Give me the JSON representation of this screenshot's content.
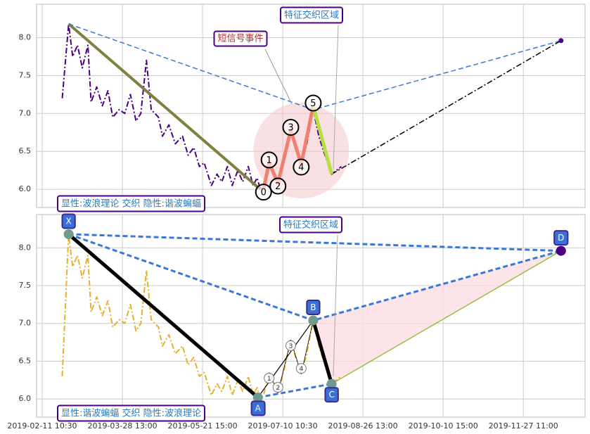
{
  "chart_data": [
    {
      "type": "line",
      "xlim": [
        -7,
        677
      ],
      "ylim": [
        5.76,
        8.44
      ],
      "grid": true,
      "yticks": [
        {
          "value": 6,
          "label": "6.0"
        },
        {
          "value": 6.5,
          "label": "6.5"
        },
        {
          "value": 7,
          "label": "7.0"
        },
        {
          "value": 7.5,
          "label": "7.5"
        },
        {
          "value": 8,
          "label": "8.0"
        }
      ],
      "series": [
        {
          "color": "#4b0082",
          "dash": "dashdot",
          "width": 2,
          "x": [
            25,
            33,
            38,
            44,
            50,
            57,
            61,
            68,
            75,
            82,
            88,
            96,
            103,
            110,
            117,
            123,
            130,
            136,
            145,
            150,
            158,
            166,
            175,
            182,
            189,
            196,
            202,
            211,
            218,
            224,
            231,
            237,
            244,
            250,
            257,
            263,
            268,
            272,
            276,
            283,
            288,
            294,
            302,
            310,
            316,
            323,
            330,
            338,
            345,
            351,
            356,
            361,
            367,
            373
          ],
          "values": [
            7.2,
            8.18,
            7.75,
            7.9,
            7.6,
            7.9,
            7.15,
            7.35,
            7.1,
            7.3,
            6.95,
            7.05,
            7.0,
            7.25,
            6.9,
            7.0,
            7.7,
            7.05,
            6.95,
            6.7,
            6.85,
            6.6,
            6.7,
            6.45,
            6.55,
            6.3,
            6.35,
            6.05,
            6.2,
            6.1,
            6.3,
            6.05,
            6.25,
            6.1,
            6.3,
            6.05,
            6.15,
            6.0,
            6.05,
            6.35,
            6.25,
            6.08,
            6.4,
            6.78,
            6.55,
            6.33,
            6.6,
            7.05,
            6.7,
            6.5,
            6.35,
            6.2,
            6.25,
            6.3
          ]
        },
        {
          "color": "#808040",
          "width": 4,
          "x": [
            33,
            272
          ],
          "values": [
            8.18,
            6.0
          ]
        },
        {
          "color": "#3a78d8",
          "dash": "dashed",
          "width": 1.5,
          "x": [
            33,
            338,
            647
          ],
          "values": [
            8.18,
            7.05,
            7.96
          ]
        },
        {
          "color": "#000000",
          "dash": "dashdot",
          "width": 1.5,
          "x": [
            361,
            647
          ],
          "values": [
            6.2,
            7.96
          ]
        },
        {
          "color": "#f08070",
          "width": 5,
          "x": [
            276,
            283,
            294,
            310,
            323,
            338
          ],
          "values": [
            6.0,
            6.35,
            6.08,
            6.78,
            6.33,
            7.1
          ]
        },
        {
          "color": "#b5e040",
          "width": 5,
          "x": [
            338,
            361
          ],
          "values": [
            7.1,
            6.2
          ]
        }
      ],
      "waves": {
        "labels": [
          "0",
          "1",
          "2",
          "3",
          "4",
          "5"
        ],
        "x": [
          276,
          283,
          294,
          310,
          323,
          338
        ],
        "values": [
          6.0,
          6.35,
          6.08,
          6.78,
          6.33,
          7.1
        ]
      },
      "markers": {
        "color": "#4b0082",
        "x": [
          647
        ],
        "values": [
          7.96
        ]
      },
      "annotations": [
        "特征交织区域",
        "短信号事件"
      ],
      "label": "显性:波浪理论 交织 隐性:谐波蝙蝠"
    },
    {
      "type": "line",
      "xlim": [
        -7,
        677
      ],
      "ylim": [
        5.76,
        8.44
      ],
      "grid": true,
      "fill": "#fbdde2",
      "yticks": [
        {
          "value": 6,
          "label": "6.0"
        },
        {
          "value": 6.5,
          "label": "6.5"
        },
        {
          "value": 7,
          "label": "7.0"
        },
        {
          "value": 7.5,
          "label": "7.5"
        },
        {
          "value": 8,
          "label": "8.0"
        }
      ],
      "xticks": [
        {
          "value": 0,
          "label": "2019-02-11 10:30"
        },
        {
          "value": 100,
          "label": "2019-03-28 13:00"
        },
        {
          "value": 200,
          "label": "2019-05-21 15:00"
        },
        {
          "value": 300,
          "label": "2019-07-10 10:30"
        },
        {
          "value": 400,
          "label": "2019-08-26 13:00"
        },
        {
          "value": 500,
          "label": "2019-10-10 15:00"
        },
        {
          "value": 600,
          "label": "2019-11-27 11:00"
        }
      ],
      "series": [
        {
          "color": "#e8b030",
          "dash": "dashdot",
          "width": 2,
          "x": [
            25,
            33,
            38,
            44,
            50,
            57,
            61,
            68,
            75,
            82,
            88,
            96,
            103,
            110,
            117,
            123,
            130,
            136,
            145,
            150,
            158,
            166,
            175,
            182,
            189,
            196,
            202,
            211,
            218,
            224,
            231,
            237,
            244,
            250,
            257,
            263,
            268,
            272,
            276,
            283,
            288,
            294,
            302,
            310,
            316,
            323,
            330,
            338,
            345,
            351,
            356,
            361,
            367,
            373
          ],
          "values": [
            6.3,
            8.18,
            7.75,
            7.9,
            7.6,
            7.9,
            7.15,
            7.35,
            7.1,
            7.3,
            6.95,
            7.05,
            7.0,
            7.25,
            6.9,
            7.0,
            7.7,
            7.05,
            6.95,
            6.7,
            6.85,
            6.6,
            6.7,
            6.45,
            6.55,
            6.3,
            6.35,
            6.05,
            6.2,
            6.1,
            6.3,
            6.05,
            6.25,
            6.1,
            6.3,
            6.05,
            6.15,
            6.0,
            6.05,
            6.35,
            6.25,
            6.08,
            6.4,
            6.78,
            6.55,
            6.33,
            6.6,
            7.05,
            6.7,
            6.5,
            6.35,
            6.2,
            6.25,
            6.3
          ]
        },
        {
          "color": "#3a78d8",
          "dash": "dashed",
          "width": 3,
          "x": [
            33,
            647
          ],
          "values": [
            8.18,
            7.96
          ]
        },
        {
          "color": "#3a78d8",
          "dash": "dashed",
          "width": 3,
          "x": [
            33,
            338,
            647
          ],
          "values": [
            8.18,
            7.04,
            7.96
          ]
        },
        {
          "color": "#3a78d8",
          "dash": "dashed",
          "width": 3,
          "x": [
            269,
            361
          ],
          "values": [
            6.02,
            6.2
          ]
        },
        {
          "color": "#000000",
          "width": 5,
          "x": [
            33,
            269
          ],
          "values": [
            8.18,
            6.02
          ]
        },
        {
          "color": "#000000",
          "width": 1.2,
          "x": [
            269,
            338
          ],
          "values": [
            6.02,
            7.04
          ]
        },
        {
          "color": "#000000",
          "width": 5,
          "x": [
            338,
            361
          ],
          "values": [
            7.04,
            6.2
          ]
        },
        {
          "color": "#9bc040",
          "width": 1.5,
          "x": [
            361,
            647
          ],
          "values": [
            6.2,
            7.96
          ]
        },
        {
          "color": "#000000",
          "width": 0.8,
          "x": [
            283,
            294,
            310,
            323,
            338
          ],
          "values": [
            6.35,
            6.08,
            6.78,
            6.33,
            7.04
          ]
        }
      ],
      "points": {
        "labels": [
          "X",
          "A",
          "B",
          "C",
          "D"
        ],
        "x": [
          33,
          269,
          338,
          361,
          647
        ],
        "values": [
          8.18,
          6.02,
          7.04,
          6.2,
          7.96
        ]
      },
      "waves": {
        "labels": [
          "1",
          "2",
          "3",
          "4"
        ],
        "x": [
          283,
          294,
          310,
          323
        ],
        "values": [
          6.35,
          6.08,
          6.78,
          6.33
        ]
      },
      "annotations": [
        "特征交织区域"
      ],
      "label": "显性:谐波蝙蝠 交织 隐性:波浪理论"
    }
  ]
}
